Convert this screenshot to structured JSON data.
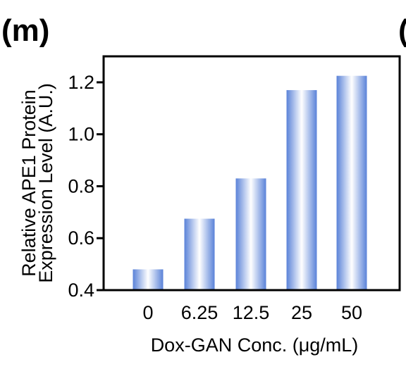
{
  "panel_label": "(m)",
  "next_panel_label": "(",
  "chart_data": {
    "type": "bar",
    "categories": [
      "0",
      "6.25",
      "12.5",
      "25",
      "50"
    ],
    "values": [
      0.48,
      0.675,
      0.83,
      1.17,
      1.225
    ],
    "xlabel": "Dox-GAN Conc. (μg/mL)",
    "ylabel_line1": "Relative APE1 Protein",
    "ylabel_line2": "Expression Level (A.U.)",
    "ylim": [
      0.4,
      1.3
    ],
    "yticks": [
      "0.4",
      "0.6",
      "0.8",
      "1.0",
      "1.2"
    ],
    "ytick_values": [
      0.4,
      0.6,
      0.8,
      1.0,
      1.2
    ],
    "bar_color": "#5a82d8",
    "bar_highlight": "#ffffff",
    "grid": false,
    "legend": "none"
  }
}
